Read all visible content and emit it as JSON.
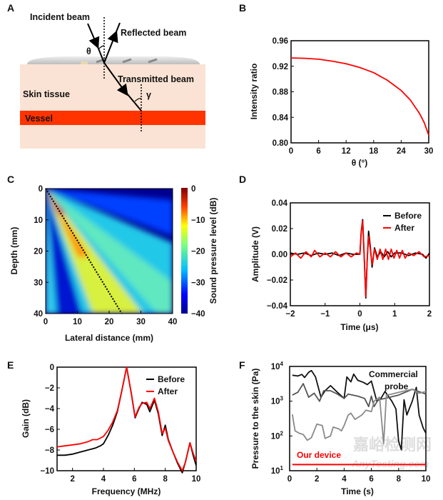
{
  "panels": {
    "A": "A",
    "B": "B",
    "C": "C",
    "D": "D",
    "E": "E",
    "F": "F"
  },
  "diagram": {
    "incident": "Incident beam",
    "reflected": "Reflected beam",
    "transmitted": "Transmitted beam",
    "skin": "Skin tissue",
    "vessel": "Vessel",
    "theta": "θ",
    "gamma": "γ",
    "colors": {
      "skin": "#fae3d4",
      "vessel": "#ff3300",
      "lens": "#d8d8d8"
    }
  },
  "chart_data": [
    {
      "id": "B",
      "type": "line",
      "xlabel": "θ (°)",
      "ylabel": "Intensity ratio",
      "xlim": [
        0,
        30
      ],
      "ylim": [
        0.8,
        0.96
      ],
      "xticks": [
        "0",
        "6",
        "12",
        "18",
        "24",
        "30"
      ],
      "yticks": [
        "0.80",
        "0.84",
        "0.88",
        "0.92",
        "0.96"
      ],
      "series": [
        {
          "name": "Intensity ratio",
          "color": "#ff0000",
          "x": [
            0,
            3,
            6,
            9,
            12,
            15,
            18,
            21,
            24,
            26,
            28,
            29,
            30
          ],
          "y": [
            0.933,
            0.9325,
            0.931,
            0.928,
            0.924,
            0.918,
            0.91,
            0.898,
            0.882,
            0.867,
            0.846,
            0.832,
            0.812
          ]
        }
      ]
    },
    {
      "id": "C",
      "type": "heatmap",
      "xlabel": "Lateral distance (mm)",
      "ylabel": "Depth (mm)",
      "xlim": [
        0,
        40
      ],
      "ylim": [
        0,
        40
      ],
      "xticks": [
        "0",
        "10",
        "20",
        "30",
        "40"
      ],
      "yticks": [
        "0",
        "10",
        "20",
        "30",
        "40"
      ],
      "colorbar": {
        "label": "Sound pressure level (dB)",
        "range": [
          -40,
          0
        ],
        "ticks": [
          "0",
          "−10",
          "−20",
          "−30",
          "−40"
        ]
      },
      "beam_line": {
        "x": [
          0,
          24
        ],
        "y": [
          0,
          40
        ]
      }
    },
    {
      "id": "D",
      "type": "line",
      "xlabel": "Time (μs)",
      "ylabel": "Amplitude (V)",
      "xlim": [
        -2,
        2
      ],
      "ylim": [
        -0.04,
        0.04
      ],
      "xticks": [
        "−2",
        "−1",
        "0",
        "1",
        "2"
      ],
      "yticks": [
        "−0.04",
        "−0.02",
        "0.00",
        "0.02",
        "0.04"
      ],
      "legend": "top-right",
      "series": [
        {
          "name": "Before",
          "color": "#000000",
          "x": [
            -2,
            -1.8,
            -1.6,
            -1.4,
            -1.2,
            -1,
            -0.8,
            -0.6,
            -0.4,
            -0.2,
            0,
            0.04,
            0.08,
            0.12,
            0.17,
            0.21,
            0.25,
            0.3,
            0.35,
            0.42,
            0.5,
            0.6,
            0.7,
            0.8,
            0.9,
            1.0,
            1.2,
            1.4,
            1.6,
            1.8,
            1.9,
            2
          ],
          "y": [
            0.001,
            0,
            0.001,
            -0.001,
            0.001,
            0,
            0.001,
            -0.001,
            0.001,
            0,
            0,
            0.018,
            0.027,
            0.0,
            -0.034,
            -0.005,
            0.018,
            0.006,
            -0.01,
            0.005,
            -0.002,
            0.002,
            -0.002,
            0.002,
            -0.002,
            0.001,
            0.001,
            -0.001,
            0.001,
            0.0,
            -0.003,
            0.001
          ]
        },
        {
          "name": "After",
          "color": "#ff0000",
          "x": [
            -2,
            -1.85,
            -1.7,
            -1.55,
            -1.4,
            -1.3,
            -1.15,
            -1,
            -0.85,
            -0.7,
            -0.55,
            -0.4,
            -0.25,
            -0.1,
            0,
            0.04,
            0.08,
            0.12,
            0.17,
            0.21,
            0.25,
            0.3,
            0.35,
            0.42,
            0.5,
            0.58,
            0.66,
            0.74,
            0.82,
            0.9,
            0.98,
            1.06,
            1.14,
            1.22,
            1.3,
            1.4,
            1.55,
            1.7,
            1.85,
            2
          ],
          "y": [
            -0.002,
            0.001,
            -0.003,
            0.002,
            -0.002,
            0.003,
            -0.002,
            0.001,
            -0.002,
            0.002,
            -0.002,
            0.001,
            -0.002,
            0.001,
            0,
            0.017,
            0.026,
            0.0,
            -0.033,
            -0.005,
            0.014,
            0.004,
            -0.008,
            0.004,
            -0.004,
            0.004,
            -0.004,
            0.004,
            -0.004,
            0.004,
            -0.003,
            0.003,
            -0.003,
            0.003,
            -0.003,
            0.001,
            -0.001,
            0.002,
            -0.002,
            -0.001
          ]
        }
      ]
    },
    {
      "id": "E",
      "type": "line",
      "xlabel": "Frequency (MHz)",
      "ylabel": "Gain (dB)",
      "xlim": [
        1,
        10
      ],
      "ylim": [
        -10,
        0
      ],
      "xticks": [
        "2",
        "4",
        "6",
        "8",
        "10"
      ],
      "yticks": [
        "−10",
        "−8",
        "−6",
        "−4",
        "−2",
        "0"
      ],
      "xtick_values": [
        2,
        4,
        6,
        8,
        10
      ],
      "legend": "top-right",
      "series": [
        {
          "name": "Before",
          "color": "#000000",
          "x": [
            1,
            1.5,
            2,
            2.5,
            3,
            3.5,
            3.8,
            4.0,
            4.3,
            4.6,
            4.9,
            5.2,
            5.5,
            5.8,
            6.05,
            6.3,
            6.5,
            6.8,
            7.0,
            7.3,
            7.55,
            7.8,
            8.0,
            8.2,
            8.5,
            8.8,
            9.1,
            9.3,
            9.6,
            9.8,
            10
          ],
          "y": [
            -8.5,
            -8.5,
            -8.4,
            -8.2,
            -8.0,
            -7.8,
            -7.6,
            -7.4,
            -6.6,
            -5.6,
            -4.3,
            -2.2,
            0,
            -2.5,
            -4.9,
            -4.0,
            -3.4,
            -3.6,
            -4.3,
            -3.2,
            -4.5,
            -6.6,
            -5.6,
            -7.0,
            -8.2,
            -9.3,
            -10.2,
            -9.2,
            -7.3,
            -8.5,
            -9.5
          ]
        },
        {
          "name": "After",
          "color": "#ff0000",
          "x": [
            1,
            1.5,
            2,
            2.5,
            3,
            3.3,
            3.6,
            4.0,
            4.3,
            4.6,
            4.9,
            5.2,
            5.5,
            5.8,
            6.05,
            6.3,
            6.5,
            6.8,
            7.0,
            7.3,
            7.55,
            7.8,
            8.0,
            8.2,
            8.5,
            8.8,
            9.1,
            9.3,
            9.6,
            9.8,
            10
          ],
          "y": [
            -7.7,
            -7.6,
            -7.5,
            -7.4,
            -7.2,
            -7.0,
            -7.0,
            -6.7,
            -6.1,
            -5.3,
            -4.2,
            -2.2,
            0,
            -2.5,
            -4.8,
            -3.9,
            -3.5,
            -3.4,
            -4.0,
            -3.0,
            -4.3,
            -6.4,
            -5.9,
            -7.1,
            -8.2,
            -9.2,
            -10.0,
            -9.2,
            -7.3,
            -8.3,
            -9.1
          ]
        }
      ]
    },
    {
      "id": "F",
      "type": "line",
      "xlabel": "Time (s)",
      "ylabel": "Pressure to the skin (Pa)",
      "xlim": [
        0,
        10
      ],
      "ylim": [
        10,
        10000
      ],
      "yscale": "log",
      "xticks": [
        "0",
        "2",
        "4",
        "6",
        "8",
        "10"
      ],
      "yticks": [
        {
          "base": "10",
          "exp": "1"
        },
        {
          "base": "10",
          "exp": "2"
        },
        {
          "base": "10",
          "exp": "3"
        },
        {
          "base": "10",
          "exp": "4"
        }
      ],
      "annotations": [
        "Commercial",
        "probe",
        "Our device"
      ],
      "series": [
        {
          "name": "Commercial probe 1",
          "color": "#111111",
          "x": [
            0.2,
            0.6,
            0.9,
            1.1,
            1.4,
            1.6,
            1.9,
            2.3,
            2.6,
            3,
            3.5,
            4,
            4.2,
            4.5,
            4.7,
            5,
            5.4,
            5.7,
            6,
            6.4,
            6.7,
            7,
            7.5,
            7.8,
            8,
            8.2,
            8.4,
            8.6,
            9,
            9.3,
            9.5,
            9.8,
            10
          ],
          "y": [
            5600,
            5300,
            5900,
            4800,
            6800,
            7600,
            5000,
            1300,
            2000,
            2800,
            1800,
            1200,
            5000,
            3600,
            6000,
            4000,
            3500,
            3000,
            3800,
            1000,
            1200,
            1900,
            1000,
            600,
            70,
            40,
            1100,
            400,
            1000,
            2500,
            400,
            170,
            120
          ]
        },
        {
          "name": "Commercial probe 2",
          "color": "#555555",
          "x": [
            0.2,
            0.6,
            1,
            1.4,
            1.8,
            2.2,
            2.5,
            3,
            3.5,
            4,
            4.3,
            5,
            5.5,
            5.8,
            6,
            6.2,
            6.5,
            7,
            8,
            9,
            10
          ],
          "y": [
            1500,
            1800,
            3200,
            1300,
            1700,
            1000,
            2000,
            2000,
            1600,
            1200,
            1600,
            1400,
            1200,
            700,
            1400,
            700,
            1100,
            1200,
            1500,
            2200,
            1600
          ]
        },
        {
          "name": "Commercial probe 3",
          "color": "#8a8a8a",
          "x": [
            0.2,
            0.4,
            0.7,
            1,
            1.3,
            1.6,
            2,
            2.4,
            2.6,
            3,
            3.2,
            3.6,
            3.8,
            4,
            4.3,
            4.5,
            4.8,
            5.3,
            5.6,
            6,
            6.2,
            6.6,
            6.9,
            7.1,
            7.5,
            8,
            8.5,
            9,
            9.5,
            10
          ],
          "y": [
            420,
            140,
            120,
            110,
            75,
            90,
            220,
            200,
            85,
            100,
            180,
            160,
            140,
            200,
            400,
            450,
            300,
            400,
            550,
            500,
            1000,
            1300,
            60,
            1500,
            1600,
            1800,
            2000,
            2200,
            1700,
            1900
          ]
        },
        {
          "name": "Our device",
          "color": "#ff0000",
          "x": [
            0.2,
            10
          ],
          "y": [
            15,
            15
          ]
        }
      ]
    }
  ],
  "watermark": {
    "cn": "嘉峪检测网",
    "en": "AnyTesting.com"
  }
}
